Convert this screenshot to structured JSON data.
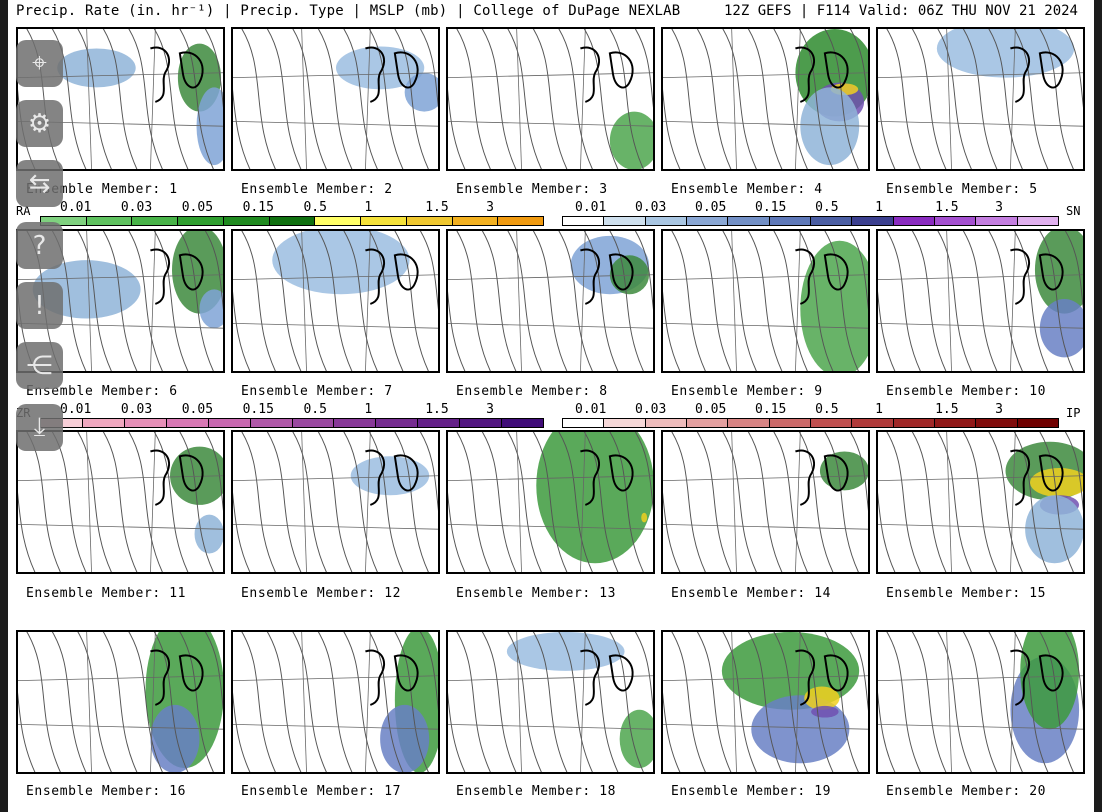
{
  "header": {
    "left": "Precip. Rate (in. hr⁻¹) | Precip. Type | MSLP (mb) | College of DuPage NEXLAB",
    "right": "12Z GEFS | F114 Valid: 06Z THU NOV 21 2024"
  },
  "members": [
    "Ensemble Member: 1",
    "Ensemble Member: 2",
    "Ensemble Member: 3",
    "Ensemble Member: 4",
    "Ensemble Member: 5",
    "Ensemble Member: 6",
    "Ensemble Member: 7",
    "Ensemble Member: 8",
    "Ensemble Member: 9",
    "Ensemble Member: 10",
    "Ensemble Member: 11",
    "Ensemble Member: 12",
    "Ensemble Member: 13",
    "Ensemble Member: 14",
    "Ensemble Member: 15",
    "Ensemble Member: 16",
    "Ensemble Member: 17",
    "Ensemble Member: 18",
    "Ensemble Member: 19",
    "Ensemble Member: 20"
  ],
  "colorbars": {
    "ra": {
      "tag": "RA",
      "ticks": [
        "0.01",
        "0.03",
        "0.05",
        "0.15",
        "0.5",
        "1",
        "1.5",
        "3"
      ],
      "colors": [
        "#7fd17f",
        "#5fc25f",
        "#48b348",
        "#2f9f2f",
        "#1f8a1f",
        "#0f700f",
        "#ffff66",
        "#f5e23a",
        "#f0c830",
        "#f2b020",
        "#f09a10"
      ]
    },
    "sn": {
      "tag": "SN",
      "ticks": [
        "0.01",
        "0.03",
        "0.05",
        "0.15",
        "0.5",
        "1",
        "1.5",
        "3"
      ],
      "colors": [
        "#ffffff",
        "#cfe0ee",
        "#a9c6e2",
        "#8aa7d4",
        "#7390c6",
        "#5e78b8",
        "#4b5ea3",
        "#3b3f8f",
        "#8a2bc0",
        "#a44fd0",
        "#c47ee0",
        "#e0b0ee"
      ]
    },
    "zr": {
      "tag": "ZR",
      "ticks": [
        "0.01",
        "0.03",
        "0.05",
        "0.15",
        "0.5",
        "1",
        "1.5",
        "3"
      ],
      "colors": [
        "#f8cfd8",
        "#f0a8c0",
        "#e690b8",
        "#d878b4",
        "#c868b0",
        "#b058a8",
        "#9a48a0",
        "#883898",
        "#762c90",
        "#642088",
        "#521680",
        "#400c78"
      ]
    },
    "ip": {
      "tag": "IP",
      "ticks": [
        "0.01",
        "0.03",
        "0.05",
        "0.15",
        "0.5",
        "1",
        "1.5",
        "3"
      ],
      "colors": [
        "#ffffff",
        "#f6d8d8",
        "#eebcbc",
        "#e4a0a0",
        "#d88484",
        "#cc6a6a",
        "#c05050",
        "#b03a3a",
        "#a02828",
        "#901818",
        "#800c0c",
        "#700000"
      ]
    }
  },
  "sidebar": [
    "map-pin-icon",
    "gear-icon",
    "swap-icon",
    "help-icon",
    "alert-icon",
    "share-icon",
    "download-icon"
  ],
  "precip": [
    [
      [
        "#8fb4d8",
        80,
        40,
        40,
        20
      ],
      [
        "#3d8a3d",
        185,
        50,
        22,
        35
      ],
      [
        "#7fa3d6",
        200,
        100,
        18,
        40
      ]
    ],
    [
      [
        "#9bbde0",
        150,
        40,
        45,
        22
      ],
      [
        "#7fa3d6",
        195,
        65,
        20,
        20
      ]
    ],
    [
      [
        "#4ea64e",
        190,
        115,
        25,
        30
      ]
    ],
    [
      [
        "#2e8b2e",
        175,
        45,
        40,
        45
      ],
      [
        "#7050b0",
        180,
        75,
        25,
        20
      ],
      [
        "#f0d020",
        185,
        62,
        14,
        6
      ],
      [
        "#8fb4d8",
        170,
        100,
        30,
        40
      ]
    ],
    [
      [
        "#9bbde0",
        130,
        20,
        70,
        30
      ]
    ],
    [
      [
        "#8fb4d8",
        70,
        60,
        55,
        30
      ],
      [
        "#3d8a3d",
        185,
        40,
        28,
        45
      ],
      [
        "#7fa3d6",
        200,
        80,
        15,
        20
      ]
    ],
    [
      [
        "#9bbde0",
        110,
        30,
        70,
        35
      ]
    ],
    [
      [
        "#7fa3d6",
        165,
        35,
        40,
        30
      ],
      [
        "#3d8a3d",
        185,
        45,
        20,
        20
      ]
    ],
    [
      [
        "#4ea64e",
        180,
        80,
        40,
        70
      ]
    ],
    [
      [
        "#3d8a3d",
        190,
        40,
        30,
        45
      ],
      [
        "#6880c4",
        190,
        100,
        25,
        30
      ]
    ],
    [
      [
        "#3d8a3d",
        185,
        45,
        30,
        30
      ],
      [
        "#8fb4d8",
        195,
        105,
        15,
        20
      ]
    ],
    [
      [
        "#9bbde0",
        160,
        45,
        40,
        20
      ]
    ],
    [
      [
        "#3d9a3d",
        150,
        55,
        60,
        80
      ],
      [
        "#f0d020",
        200,
        88,
        3,
        5
      ]
    ],
    [
      [
        "#3d8a3d",
        185,
        40,
        25,
        20
      ]
    ],
    [
      [
        "#3d8a3d",
        175,
        40,
        45,
        30
      ],
      [
        "#f0d020",
        185,
        52,
        30,
        15
      ],
      [
        "#7050b0",
        185,
        75,
        20,
        10
      ],
      [
        "#8fb4d8",
        180,
        100,
        30,
        35
      ]
    ],
    [
      [
        "#3d9a3d",
        170,
        60,
        40,
        80
      ],
      [
        "#6880c4",
        160,
        110,
        25,
        35
      ]
    ],
    [
      [
        "#3d9a3d",
        190,
        70,
        25,
        75
      ],
      [
        "#6880c4",
        175,
        110,
        25,
        35
      ]
    ],
    [
      [
        "#4ea64e",
        195,
        110,
        20,
        30
      ],
      [
        "#9bbde0",
        120,
        20,
        60,
        20
      ]
    ],
    [
      [
        "#3d9a3d",
        130,
        40,
        70,
        40
      ],
      [
        "#6880c4",
        140,
        100,
        50,
        35
      ],
      [
        "#f0d020",
        162,
        68,
        18,
        12
      ],
      [
        "#7050b0",
        165,
        82,
        14,
        6
      ]
    ],
    [
      [
        "#6880c4",
        170,
        80,
        35,
        55
      ],
      [
        "#3d9a3d",
        175,
        40,
        30,
        60
      ]
    ]
  ]
}
